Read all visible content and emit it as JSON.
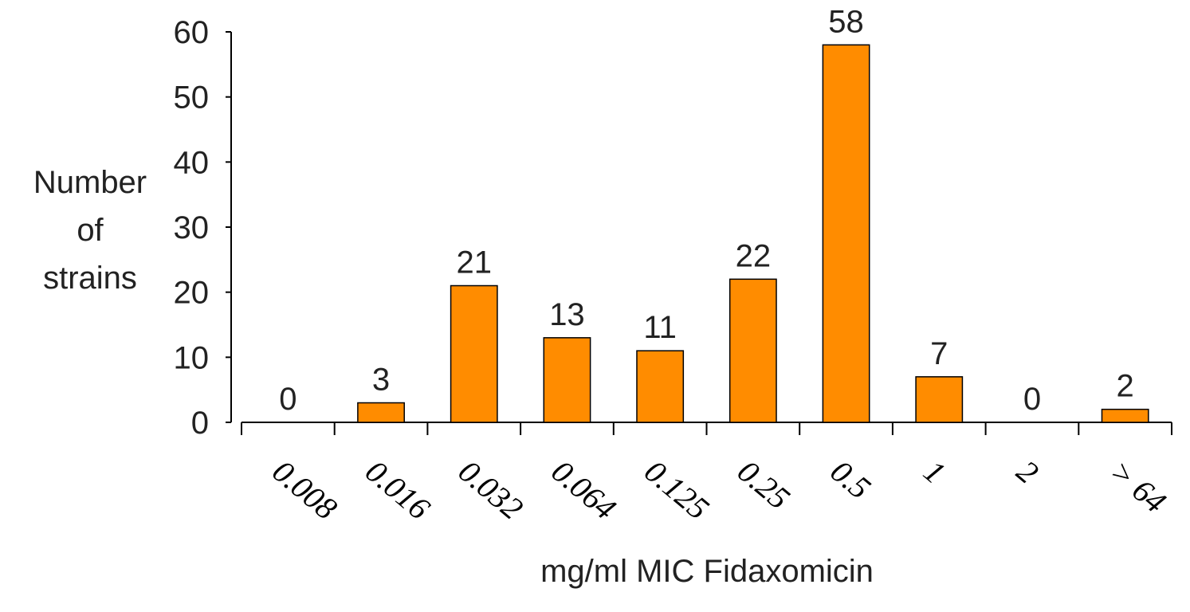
{
  "chart_data": {
    "type": "bar",
    "categories": [
      "0.008",
      "0.016",
      "0.032",
      "0.064",
      "0.125",
      "0.25",
      "0.5",
      "1",
      "2",
      "> 64"
    ],
    "values": [
      0,
      3,
      21,
      13,
      11,
      22,
      58,
      7,
      0,
      2
    ],
    "data_labels": [
      "0",
      "3",
      "21",
      "13",
      "11",
      "22",
      "58",
      "7",
      "0",
      "2"
    ],
    "xlabel": "mg/ml MIC Fidaxomicin",
    "ylabel_lines": [
      "Number",
      "of",
      "strains"
    ],
    "ylim": [
      0,
      60
    ],
    "yticks": [
      "0",
      "10",
      "20",
      "30",
      "40",
      "50",
      "60"
    ],
    "grid": false,
    "legend": "none",
    "bar_color": "#FF8C00",
    "bar_stroke": "#000000"
  }
}
